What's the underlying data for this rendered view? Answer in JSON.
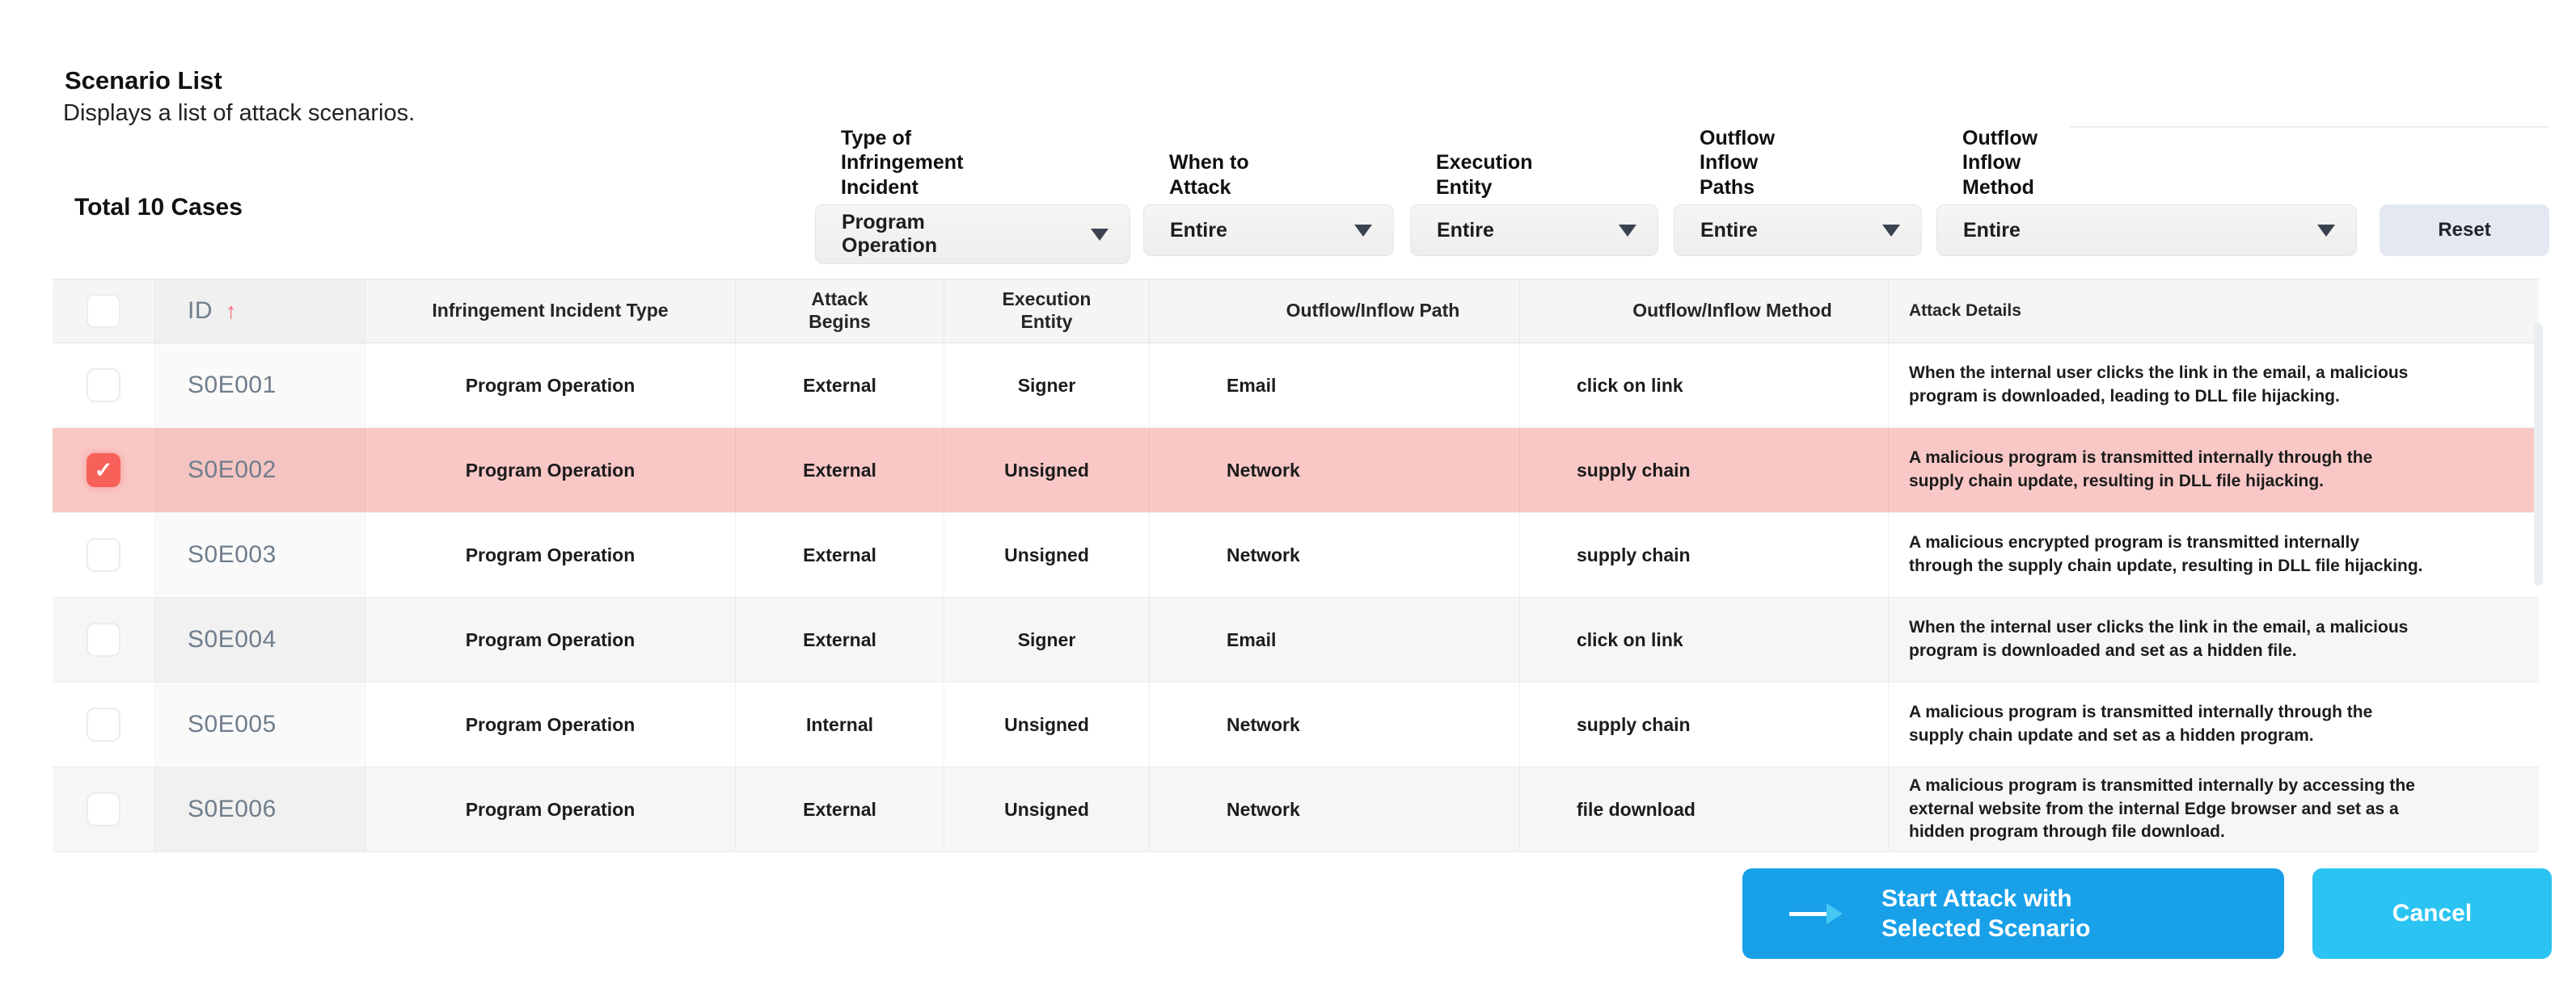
{
  "panel": {
    "title": "Scenario List",
    "subtitle": "Displays a list of attack scenarios.",
    "total": "Total 10 Cases"
  },
  "filters": {
    "reset": "Reset",
    "items": [
      {
        "label": "Type of\nInfringement\nIncident",
        "value": "Program\nOperation"
      },
      {
        "label": "When to\nAttack",
        "value": "Entire"
      },
      {
        "label": "Execution\nEntity",
        "value": "Entire"
      },
      {
        "label": "Outflow\nInflow\nPaths",
        "value": "Entire"
      },
      {
        "label": "Outflow\nInflow\nMethod",
        "value": "Entire"
      }
    ]
  },
  "table": {
    "sort": {
      "column": "ID",
      "direction": "ascending",
      "arrow": "↑"
    },
    "columns": [
      "ID",
      "Infringement Incident Type",
      "Attack\nBegins",
      "Execution\nEntity",
      "Outflow/Inflow Path",
      "Outflow/Inflow Method",
      "Attack Details"
    ],
    "checkmark": "✓",
    "rows": [
      {
        "id": "S0E001",
        "checked": false,
        "selected": false,
        "incident_type": "Program Operation",
        "attack_begins": "External",
        "execution_entity": "Signer",
        "path": "Email",
        "method": "click on link",
        "details": "When the internal user clicks the link in the email, a malicious program is downloaded, leading to DLL file hijacking."
      },
      {
        "id": "S0E002",
        "checked": true,
        "selected": true,
        "incident_type": "Program Operation",
        "attack_begins": "External",
        "execution_entity": "Unsigned",
        "path": "Network",
        "method": "supply chain",
        "details": "A malicious program is transmitted internally through the supply chain update, resulting in DLL file hijacking."
      },
      {
        "id": "S0E003",
        "checked": false,
        "selected": false,
        "incident_type": "Program Operation",
        "attack_begins": "External",
        "execution_entity": "Unsigned",
        "path": "Network",
        "method": "supply chain",
        "details": "A malicious encrypted program is transmitted internally through the supply chain update, resulting in DLL file hijacking."
      },
      {
        "id": "S0E004",
        "checked": false,
        "selected": false,
        "incident_type": "Program Operation",
        "attack_begins": "External",
        "execution_entity": "Signer",
        "path": "Email",
        "method": "click on link",
        "details": "When the internal user clicks the link in the email, a malicious program is downloaded and set as a hidden file."
      },
      {
        "id": "S0E005",
        "checked": false,
        "selected": false,
        "incident_type": "Program Operation",
        "attack_begins": "Internal",
        "execution_entity": "Unsigned",
        "path": "Network",
        "method": "supply chain",
        "details": "A malicious program is transmitted internally through the supply chain update and set as a hidden program."
      },
      {
        "id": "S0E006",
        "checked": false,
        "selected": false,
        "incident_type": "Program Operation",
        "attack_begins": "External",
        "execution_entity": "Unsigned",
        "path": "Network",
        "method": "file download",
        "details": "A malicious program is transmitted internally by accessing the external website from the internal Edge browser and set as a hidden program through file download."
      }
    ]
  },
  "actions": {
    "start": "Start Attack with Selected Scenario",
    "cancel": "Cancel"
  },
  "colors": {
    "accent_blue": "#18a0e8",
    "accent_cyan": "#2bc4f2",
    "selected_row": "#f9c8c6",
    "checkbox_checked": "#f8615a",
    "sort_arrow": "#f7616d",
    "reset_bg": "#e4e8f3"
  }
}
